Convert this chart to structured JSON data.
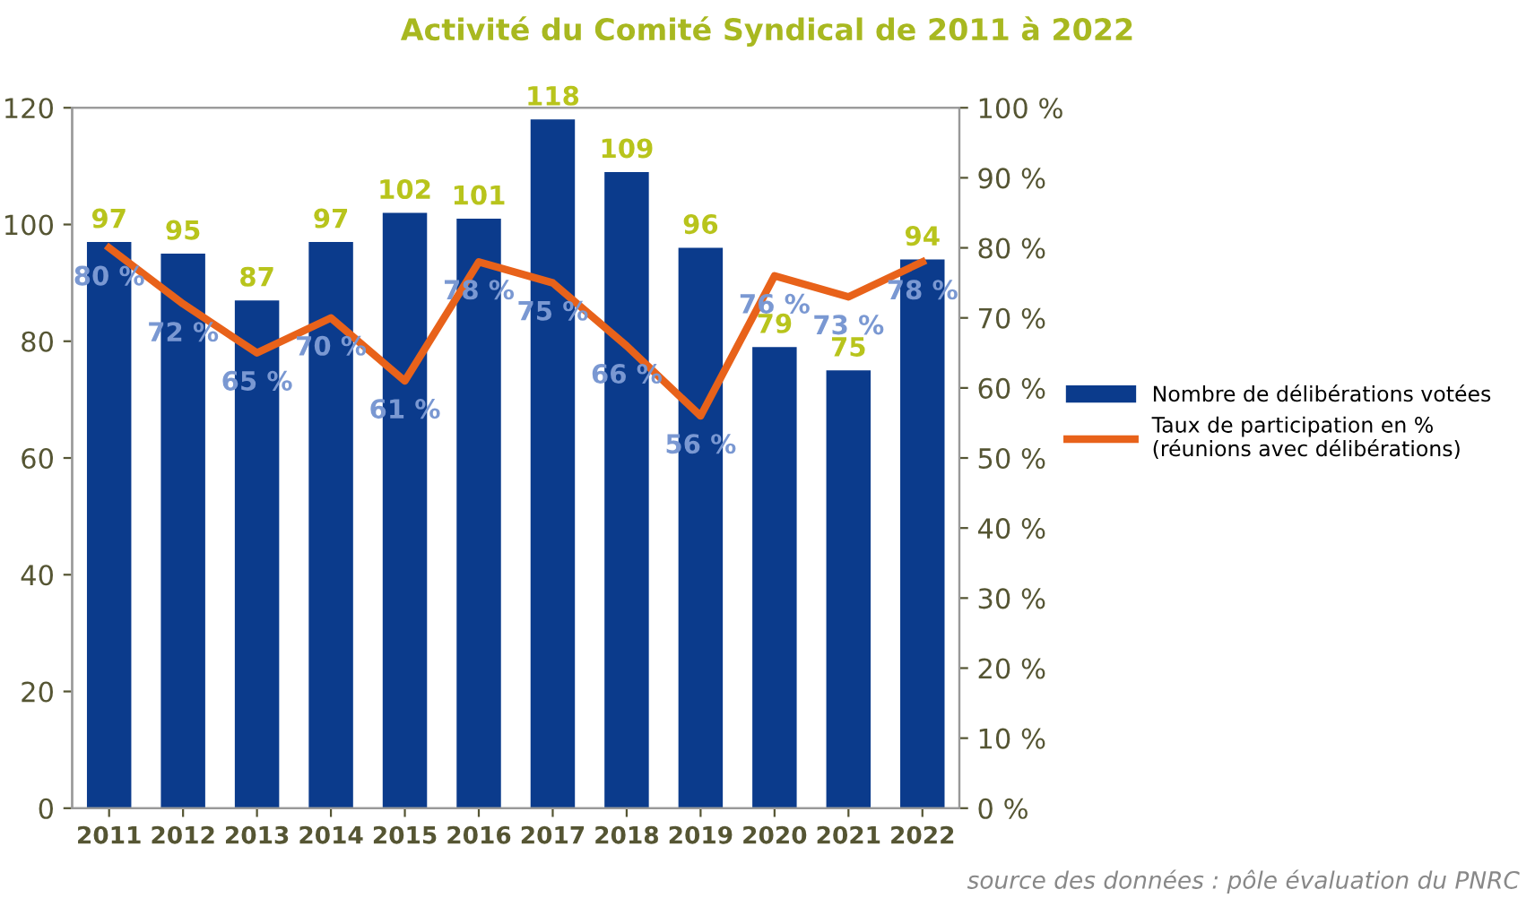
{
  "chart_data": {
    "type": "bar",
    "title": "Activité du Comité Syndical de 2011 à 2022",
    "categories": [
      "2011",
      "2012",
      "2013",
      "2014",
      "2015",
      "2016",
      "2017",
      "2018",
      "2019",
      "2020",
      "2021",
      "2022"
    ],
    "series": [
      {
        "name": "Nombre de délibérations votées",
        "color": "#0b3b8c",
        "values": [
          97,
          95,
          87,
          97,
          102,
          101,
          118,
          109,
          96,
          79,
          75,
          94
        ]
      },
      {
        "name": "Taux de participation en %\n(réunions avec délibérations)",
        "type": "line",
        "axis": "y2",
        "color": "#e8621a",
        "values": [
          80,
          72,
          65,
          70,
          61,
          78,
          75,
          66,
          56,
          76,
          73,
          78
        ],
        "value_labels": [
          "80 %",
          "72 %",
          "65 %",
          "70 %",
          "61 %",
          "78 %",
          "75 %",
          "66 %",
          "56 %",
          "76 %",
          "73 %",
          "78 %"
        ]
      }
    ],
    "ylim": [
      0,
      120
    ],
    "yticks": [
      0,
      20,
      40,
      60,
      80,
      100,
      120
    ],
    "y2lim": [
      0,
      100
    ],
    "y2ticks": [
      {
        "value": 0,
        "label": "0 %"
      },
      {
        "value": 10,
        "label": "10 %"
      },
      {
        "value": 20,
        "label": "20 %"
      },
      {
        "value": 30,
        "label": "30 %"
      },
      {
        "value": 40,
        "label": "40 %"
      },
      {
        "value": 50,
        "label": "50 %"
      },
      {
        "value": 60,
        "label": "60 %"
      },
      {
        "value": 70,
        "label": "70 %"
      },
      {
        "value": 80,
        "label": "80 %"
      },
      {
        "value": 90,
        "label": "90 %"
      },
      {
        "value": 100,
        "label": "100 %"
      }
    ],
    "data_labels": true,
    "grid": false,
    "legend": "right",
    "marker": "none",
    "line_style": "solid",
    "annotations": [
      "source des données : pôle évaluation du PNRC"
    ]
  }
}
